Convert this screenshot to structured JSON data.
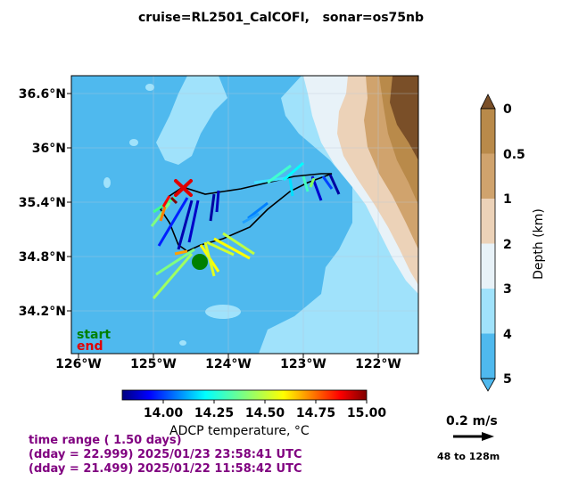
{
  "title": "cruise=RL2501_CalCOFI,   sonar=os75nb",
  "map": {
    "lon_range": [
      -126.1,
      -121.45
    ],
    "lat_range": [
      33.6,
      36.9
    ],
    "lon_ticks": [
      {
        "value": -126,
        "label": "126°W"
      },
      {
        "value": -125,
        "label": "125°W"
      },
      {
        "value": -124,
        "label": "124°W"
      },
      {
        "value": -123,
        "label": "123°W"
      },
      {
        "value": -122,
        "label": "122°W"
      }
    ],
    "lat_ticks": [
      {
        "value": 36.6,
        "label": "36.6°N"
      },
      {
        "value": 36.0,
        "label": "36°N"
      },
      {
        "value": 35.4,
        "label": "35.4°N"
      },
      {
        "value": 34.8,
        "label": "34.8°N"
      },
      {
        "value": 34.2,
        "label": "34.2°N"
      }
    ],
    "start_label": "start",
    "end_label": "end",
    "start_color": "#008000",
    "end_color": "#e00000",
    "start_position": {
      "lon": -124.4,
      "lat": 34.75
    },
    "end_position": {
      "lon": -124.55,
      "lat": 35.57
    }
  },
  "depth_colorbar": {
    "label": "Depth (km)",
    "ticks": [
      "0",
      "0.5",
      "1",
      "2",
      "3",
      "4",
      "5"
    ],
    "colors": [
      "#b98a4a",
      "#d0a36d",
      "#ecd2b8",
      "#e8f2f8",
      "#a0e2fb",
      "#4fb9ee"
    ]
  },
  "temp_colorbar": {
    "label": "ADCP temperature, °C",
    "ticks": [
      "14.00",
      "14.25",
      "14.50",
      "14.75",
      "15.00"
    ],
    "range": [
      13.8,
      15.0
    ]
  },
  "scale": {
    "label": "0.2 m/s",
    "depth_range": "48 to 128m"
  },
  "time_info": {
    "line1": "time range ( 1.50 days)",
    "line2": "(dday = 22.999) 2025/01/23 23:58:41 UTC",
    "line3": "(dday = 21.499) 2025/01/22 11:58:42 UTC"
  }
}
